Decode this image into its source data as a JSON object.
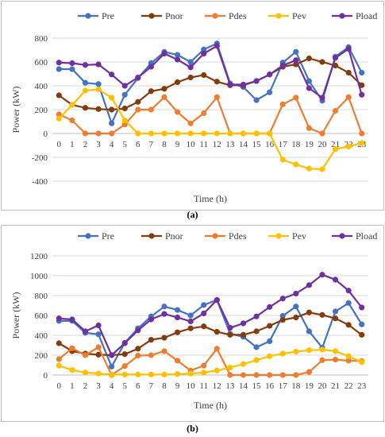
{
  "charts": [
    {
      "label": "(a)",
      "ylabel": "Power (kW)",
      "xlabel": "Time (h)",
      "yticks": [
        800,
        600,
        400,
        200,
        0,
        -200,
        -400
      ]
    },
    {
      "label": "(b)",
      "ylabel": "Power (kW)",
      "xlabel": "Time (h)",
      "yticks": [
        1200,
        1000,
        800,
        600,
        400,
        200,
        0
      ]
    }
  ],
  "colors": {
    "Pre": "#4472C4",
    "Pnor": "#843C0C",
    "Pdes": "#ED7D31",
    "Pev": "#FFC000",
    "Pload": "#7030A0"
  },
  "chart_data": [
    {
      "type": "line",
      "title": "",
      "xlabel": "Time (h)",
      "ylabel": "Power (kW)",
      "x": [
        0,
        1,
        2,
        3,
        4,
        5,
        6,
        7,
        8,
        9,
        10,
        11,
        12,
        13,
        14,
        15,
        16,
        17,
        18,
        19,
        20,
        21,
        22,
        23
      ],
      "ylim": [
        -400,
        800
      ],
      "legend": "top",
      "grid": "horizontal",
      "series": [
        {
          "name": "Pre",
          "values": [
            540,
            540,
            425,
            415,
            85,
            325,
            465,
            590,
            685,
            660,
            600,
            705,
            755,
            420,
            390,
            280,
            345,
            595,
            685,
            440,
            275,
            645,
            725,
            510
          ]
        },
        {
          "name": "Pnor",
          "values": [
            320,
            240,
            215,
            205,
            200,
            210,
            265,
            355,
            375,
            430,
            470,
            490,
            435,
            405,
            405,
            440,
            495,
            560,
            580,
            630,
            600,
            570,
            510,
            405
          ]
        },
        {
          "name": "Pdes",
          "values": [
            160,
            110,
            0,
            0,
            0,
            75,
            200,
            200,
            305,
            180,
            85,
            170,
            305,
            0,
            0,
            0,
            0,
            245,
            300,
            45,
            0,
            190,
            305,
            0
          ]
        },
        {
          "name": "Pev",
          "values": [
            125,
            240,
            360,
            370,
            300,
            110,
            0,
            0,
            0,
            0,
            0,
            0,
            0,
            0,
            0,
            0,
            0,
            -220,
            -260,
            -295,
            -300,
            -130,
            -110,
            -80
          ]
        },
        {
          "name": "Pload",
          "values": [
            595,
            590,
            575,
            580,
            495,
            400,
            470,
            560,
            670,
            620,
            555,
            670,
            735,
            410,
            410,
            440,
            495,
            570,
            615,
            380,
            300,
            635,
            710,
            325
          ]
        }
      ]
    },
    {
      "type": "line",
      "title": "",
      "xlabel": "Time (h)",
      "ylabel": "Power (kW)",
      "x": [
        0,
        1,
        2,
        3,
        4,
        5,
        6,
        7,
        8,
        9,
        10,
        11,
        12,
        13,
        14,
        15,
        16,
        17,
        18,
        19,
        20,
        21,
        22,
        23
      ],
      "ylim": [
        0,
        1200
      ],
      "legend": "top",
      "grid": "horizontal",
      "series": [
        {
          "name": "Pre",
          "values": [
            545,
            545,
            425,
            410,
            85,
            325,
            470,
            590,
            690,
            655,
            600,
            705,
            755,
            415,
            385,
            280,
            340,
            595,
            690,
            440,
            275,
            640,
            725,
            510
          ]
        },
        {
          "name": "Pnor",
          "values": [
            320,
            240,
            215,
            205,
            200,
            210,
            265,
            355,
            375,
            430,
            470,
            490,
            435,
            405,
            405,
            440,
            495,
            555,
            580,
            630,
            605,
            570,
            505,
            405
          ]
        },
        {
          "name": "Pdes",
          "values": [
            160,
            270,
            200,
            280,
            0,
            90,
            195,
            200,
            240,
            145,
            45,
            95,
            265,
            0,
            0,
            0,
            0,
            0,
            0,
            30,
            150,
            155,
            145,
            140
          ]
        },
        {
          "name": "Pev",
          "values": [
            95,
            50,
            25,
            15,
            5,
            5,
            5,
            5,
            5,
            10,
            15,
            25,
            45,
            75,
            110,
            150,
            190,
            215,
            235,
            250,
            255,
            240,
            190,
            130
          ]
        },
        {
          "name": "Pload",
          "values": [
            570,
            560,
            440,
            500,
            200,
            320,
            450,
            560,
            615,
            580,
            540,
            620,
            755,
            475,
            520,
            590,
            685,
            770,
            820,
            905,
            1010,
            960,
            850,
            680
          ]
        }
      ]
    }
  ]
}
